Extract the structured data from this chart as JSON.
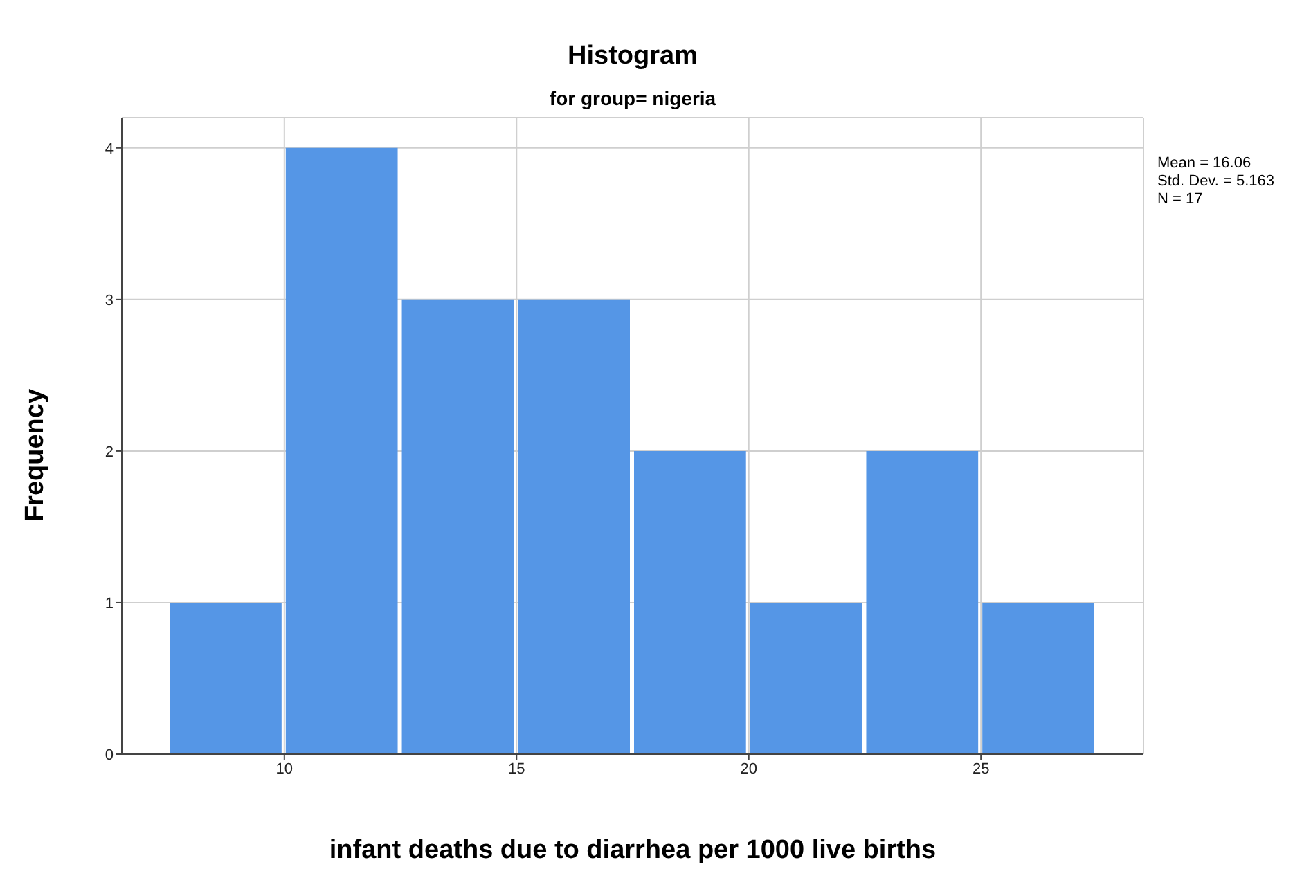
{
  "chart_data": {
    "type": "histogram",
    "title": "Histogram",
    "subtitle": "for group= nigeria",
    "xlabel": "infant deaths due to diarrhea per 1000 live births",
    "ylabel": "Frequency",
    "bins": [
      7.5,
      10,
      12.5,
      15,
      17.5,
      20,
      22.5,
      25,
      27.5
    ],
    "values": [
      1,
      4,
      3,
      3,
      2,
      1,
      2,
      1
    ],
    "color": "#5596e6",
    "xlim": [
      6.5,
      28.5
    ],
    "xticks": [
      10,
      15,
      20,
      25
    ],
    "ylim": [
      0,
      4.2
    ],
    "yticks": [
      0,
      1,
      2,
      3,
      4
    ],
    "grid": true,
    "annotations": [
      "Mean = 16.06",
      "Std. Dev. = 5.163",
      "N = 17"
    ]
  }
}
